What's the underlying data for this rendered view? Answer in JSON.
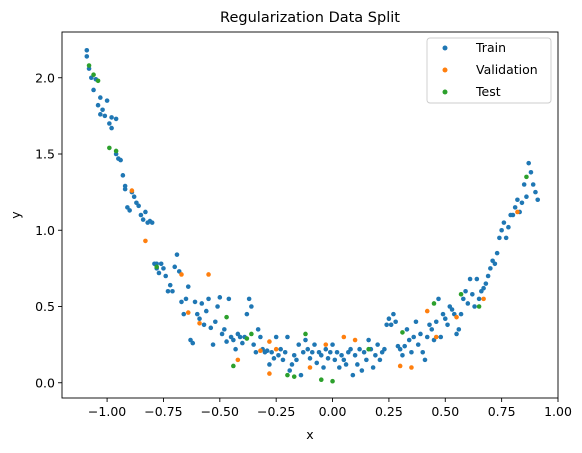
{
  "chart_data": {
    "type": "scatter",
    "title": "Regularization Data Split",
    "xlabel": "x",
    "ylabel": "y",
    "xlim": [
      -1.2,
      1.0
    ],
    "ylim": [
      -0.1,
      2.3
    ],
    "xticks": [
      -1.0,
      -0.75,
      -0.5,
      -0.25,
      0.0,
      0.25,
      0.5,
      0.75,
      1.0
    ],
    "xtick_labels": [
      "−1.00",
      "−0.75",
      "−0.50",
      "−0.25",
      "0.00",
      "0.25",
      "0.50",
      "0.75",
      "1.00"
    ],
    "yticks": [
      0.0,
      0.5,
      1.0,
      1.5,
      2.0
    ],
    "ytick_labels": [
      "0.0",
      "0.5",
      "1.0",
      "1.5",
      "2.0"
    ],
    "grid": false,
    "legend_position": "top-right",
    "series": [
      {
        "name": "Train",
        "color": "#1f77b4",
        "points": [
          [
            -1.09,
            2.18
          ],
          [
            -1.09,
            2.14
          ],
          [
            -1.08,
            2.06
          ],
          [
            -1.07,
            2.0
          ],
          [
            -1.06,
            1.92
          ],
          [
            -1.05,
            1.99
          ],
          [
            -1.04,
            1.82
          ],
          [
            -1.03,
            1.87
          ],
          [
            -1.03,
            1.76
          ],
          [
            -1.02,
            1.79
          ],
          [
            -1.01,
            1.75
          ],
          [
            -1.0,
            1.85
          ],
          [
            -0.99,
            1.7
          ],
          [
            -0.98,
            1.74
          ],
          [
            -0.98,
            1.67
          ],
          [
            -0.96,
            1.73
          ],
          [
            -0.96,
            1.5
          ],
          [
            -0.95,
            1.47
          ],
          [
            -0.94,
            1.46
          ],
          [
            -0.93,
            1.36
          ],
          [
            -0.92,
            1.29
          ],
          [
            -0.92,
            1.27
          ],
          [
            -0.91,
            1.15
          ],
          [
            -0.9,
            1.13
          ],
          [
            -0.89,
            1.25
          ],
          [
            -0.88,
            1.22
          ],
          [
            -0.87,
            1.18
          ],
          [
            -0.86,
            1.16
          ],
          [
            -0.85,
            1.1
          ],
          [
            -0.84,
            1.07
          ],
          [
            -0.83,
            1.12
          ],
          [
            -0.82,
            1.05
          ],
          [
            -0.81,
            1.06
          ],
          [
            -0.8,
            1.05
          ],
          [
            -0.79,
            0.78
          ],
          [
            -0.78,
            0.75
          ],
          [
            -0.78,
            0.78
          ],
          [
            -0.77,
            0.72
          ],
          [
            -0.76,
            0.78
          ],
          [
            -0.75,
            0.75
          ],
          [
            -0.74,
            0.7
          ],
          [
            -0.73,
            0.6
          ],
          [
            -0.72,
            0.64
          ],
          [
            -0.71,
            0.6
          ],
          [
            -0.7,
            0.76
          ],
          [
            -0.69,
            0.84
          ],
          [
            -0.68,
            0.73
          ],
          [
            -0.67,
            0.53
          ],
          [
            -0.66,
            0.45
          ],
          [
            -0.65,
            0.55
          ],
          [
            -0.64,
            0.63
          ],
          [
            -0.63,
            0.28
          ],
          [
            -0.62,
            0.26
          ],
          [
            -0.61,
            0.53
          ],
          [
            -0.6,
            0.45
          ],
          [
            -0.59,
            0.42
          ],
          [
            -0.58,
            0.52
          ],
          [
            -0.57,
            0.38
          ],
          [
            -0.56,
            0.47
          ],
          [
            -0.55,
            0.55
          ],
          [
            -0.54,
            0.36
          ],
          [
            -0.53,
            0.25
          ],
          [
            -0.52,
            0.4
          ],
          [
            -0.51,
            0.5
          ],
          [
            -0.5,
            0.56
          ],
          [
            -0.49,
            0.32
          ],
          [
            -0.48,
            0.35
          ],
          [
            -0.47,
            0.27
          ],
          [
            -0.46,
            0.55
          ],
          [
            -0.45,
            0.3
          ],
          [
            -0.44,
            0.28
          ],
          [
            -0.43,
            0.22
          ],
          [
            -0.42,
            0.32
          ],
          [
            -0.41,
            0.3
          ],
          [
            -0.4,
            0.26
          ],
          [
            -0.39,
            0.3
          ],
          [
            -0.38,
            0.45
          ],
          [
            -0.37,
            0.55
          ],
          [
            -0.36,
            0.5
          ],
          [
            -0.35,
            0.25
          ],
          [
            -0.34,
            0.2
          ],
          [
            -0.33,
            0.35
          ],
          [
            -0.32,
            0.3
          ],
          [
            -0.31,
            0.22
          ],
          [
            -0.3,
            0.2
          ],
          [
            -0.29,
            0.21
          ],
          [
            -0.28,
            0.12
          ],
          [
            -0.27,
            0.2
          ],
          [
            -0.26,
            0.16
          ],
          [
            -0.25,
            0.3
          ],
          [
            -0.24,
            0.18
          ],
          [
            -0.23,
            0.22
          ],
          [
            -0.22,
            0.15
          ],
          [
            -0.21,
            0.2
          ],
          [
            -0.2,
            0.3
          ],
          [
            -0.19,
            0.08
          ],
          [
            -0.18,
            0.12
          ],
          [
            -0.17,
            0.18
          ],
          [
            -0.16,
            0.15
          ],
          [
            -0.15,
            0.25
          ],
          [
            -0.14,
            0.05
          ],
          [
            -0.13,
            0.2
          ],
          [
            -0.12,
            0.28
          ],
          [
            -0.11,
            0.22
          ],
          [
            -0.1,
            0.16
          ],
          [
            -0.09,
            0.2
          ],
          [
            -0.08,
            0.25
          ],
          [
            -0.07,
            0.13
          ],
          [
            -0.06,
            0.2
          ],
          [
            -0.05,
            0.18
          ],
          [
            -0.04,
            0.1
          ],
          [
            -0.03,
            0.22
          ],
          [
            -0.02,
            0.16
          ],
          [
            -0.01,
            0.2
          ],
          [
            0.0,
            0.25
          ],
          [
            0.01,
            0.15
          ],
          [
            0.02,
            0.2
          ],
          [
            0.03,
            0.1
          ],
          [
            0.04,
            0.18
          ],
          [
            0.05,
            0.15
          ],
          [
            0.06,
            0.12
          ],
          [
            0.07,
            0.2
          ],
          [
            0.08,
            0.22
          ],
          [
            0.09,
            0.05
          ],
          [
            0.1,
            0.18
          ],
          [
            0.11,
            0.12
          ],
          [
            0.12,
            0.22
          ],
          [
            0.13,
            0.08
          ],
          [
            0.14,
            0.2
          ],
          [
            0.15,
            0.15
          ],
          [
            0.16,
            0.28
          ],
          [
            0.17,
            0.22
          ],
          [
            0.18,
            0.1
          ],
          [
            0.19,
            0.18
          ],
          [
            0.2,
            0.25
          ],
          [
            0.21,
            0.15
          ],
          [
            0.22,
            0.2
          ],
          [
            0.23,
            0.22
          ],
          [
            0.24,
            0.38
          ],
          [
            0.25,
            0.42
          ],
          [
            0.26,
            0.38
          ],
          [
            0.27,
            0.45
          ],
          [
            0.28,
            0.4
          ],
          [
            0.29,
            0.24
          ],
          [
            0.3,
            0.22
          ],
          [
            0.31,
            0.18
          ],
          [
            0.32,
            0.24
          ],
          [
            0.33,
            0.35
          ],
          [
            0.34,
            0.28
          ],
          [
            0.35,
            0.2
          ],
          [
            0.36,
            0.3
          ],
          [
            0.37,
            0.4
          ],
          [
            0.38,
            0.25
          ],
          [
            0.39,
            0.32
          ],
          [
            0.4,
            0.2
          ],
          [
            0.41,
            0.15
          ],
          [
            0.42,
            0.3
          ],
          [
            0.43,
            0.38
          ],
          [
            0.44,
            0.35
          ],
          [
            0.45,
            0.28
          ],
          [
            0.46,
            0.4
          ],
          [
            0.47,
            0.55
          ],
          [
            0.48,
            0.3
          ],
          [
            0.49,
            0.45
          ],
          [
            0.5,
            0.42
          ],
          [
            0.51,
            0.38
          ],
          [
            0.52,
            0.5
          ],
          [
            0.53,
            0.48
          ],
          [
            0.54,
            0.45
          ],
          [
            0.55,
            0.32
          ],
          [
            0.56,
            0.35
          ],
          [
            0.57,
            0.45
          ],
          [
            0.58,
            0.55
          ],
          [
            0.59,
            0.6
          ],
          [
            0.6,
            0.52
          ],
          [
            0.61,
            0.68
          ],
          [
            0.62,
            0.58
          ],
          [
            0.63,
            0.5
          ],
          [
            0.64,
            0.68
          ],
          [
            0.65,
            0.55
          ],
          [
            0.66,
            0.6
          ],
          [
            0.67,
            0.62
          ],
          [
            0.68,
            0.65
          ],
          [
            0.69,
            0.7
          ],
          [
            0.7,
            0.75
          ],
          [
            0.71,
            0.8
          ],
          [
            0.72,
            0.78
          ],
          [
            0.73,
            0.85
          ],
          [
            0.74,
            0.95
          ],
          [
            0.75,
            1.0
          ],
          [
            0.76,
            1.05
          ],
          [
            0.77,
            0.95
          ],
          [
            0.78,
            1.02
          ],
          [
            0.79,
            1.1
          ],
          [
            0.8,
            1.1
          ],
          [
            0.81,
            1.15
          ],
          [
            0.82,
            1.2
          ],
          [
            0.83,
            1.12
          ],
          [
            0.84,
            1.18
          ],
          [
            0.85,
            1.3
          ],
          [
            0.86,
            1.22
          ],
          [
            0.87,
            1.44
          ],
          [
            0.88,
            1.38
          ],
          [
            0.89,
            1.3
          ],
          [
            0.9,
            1.25
          ],
          [
            0.91,
            1.2
          ]
        ]
      },
      {
        "name": "Validation",
        "color": "#ff7f0e",
        "points": [
          [
            -0.89,
            1.26
          ],
          [
            -0.83,
            0.93
          ],
          [
            -0.67,
            0.71
          ],
          [
            -0.64,
            0.46
          ],
          [
            -0.59,
            0.39
          ],
          [
            -0.55,
            0.71
          ],
          [
            -0.42,
            0.15
          ],
          [
            -0.32,
            0.21
          ],
          [
            -0.28,
            0.27
          ],
          [
            -0.28,
            0.06
          ],
          [
            -0.25,
            0.22
          ],
          [
            -0.1,
            0.1
          ],
          [
            -0.03,
            0.25
          ],
          [
            0.05,
            0.3
          ],
          [
            0.1,
            0.28
          ],
          [
            0.3,
            0.11
          ],
          [
            0.35,
            0.1
          ],
          [
            0.42,
            0.47
          ],
          [
            0.46,
            0.3
          ],
          [
            0.55,
            0.43
          ],
          [
            0.67,
            0.55
          ],
          [
            0.82,
            1.12
          ]
        ]
      },
      {
        "name": "Test",
        "color": "#2ca02c",
        "points": [
          [
            -1.08,
            2.08
          ],
          [
            -1.06,
            2.02
          ],
          [
            -1.04,
            1.98
          ],
          [
            -0.99,
            1.54
          ],
          [
            -0.96,
            1.52
          ],
          [
            -0.78,
            0.76
          ],
          [
            -0.47,
            0.43
          ],
          [
            -0.44,
            0.11
          ],
          [
            -0.38,
            0.29
          ],
          [
            -0.36,
            0.32
          ],
          [
            -0.2,
            0.05
          ],
          [
            -0.17,
            0.04
          ],
          [
            -0.12,
            0.32
          ],
          [
            -0.05,
            0.02
          ],
          [
            0.0,
            0.01
          ],
          [
            0.16,
            0.22
          ],
          [
            0.31,
            0.33
          ],
          [
            0.45,
            0.52
          ],
          [
            0.57,
            0.58
          ],
          [
            0.65,
            0.5
          ],
          [
            0.86,
            1.35
          ]
        ]
      }
    ]
  }
}
